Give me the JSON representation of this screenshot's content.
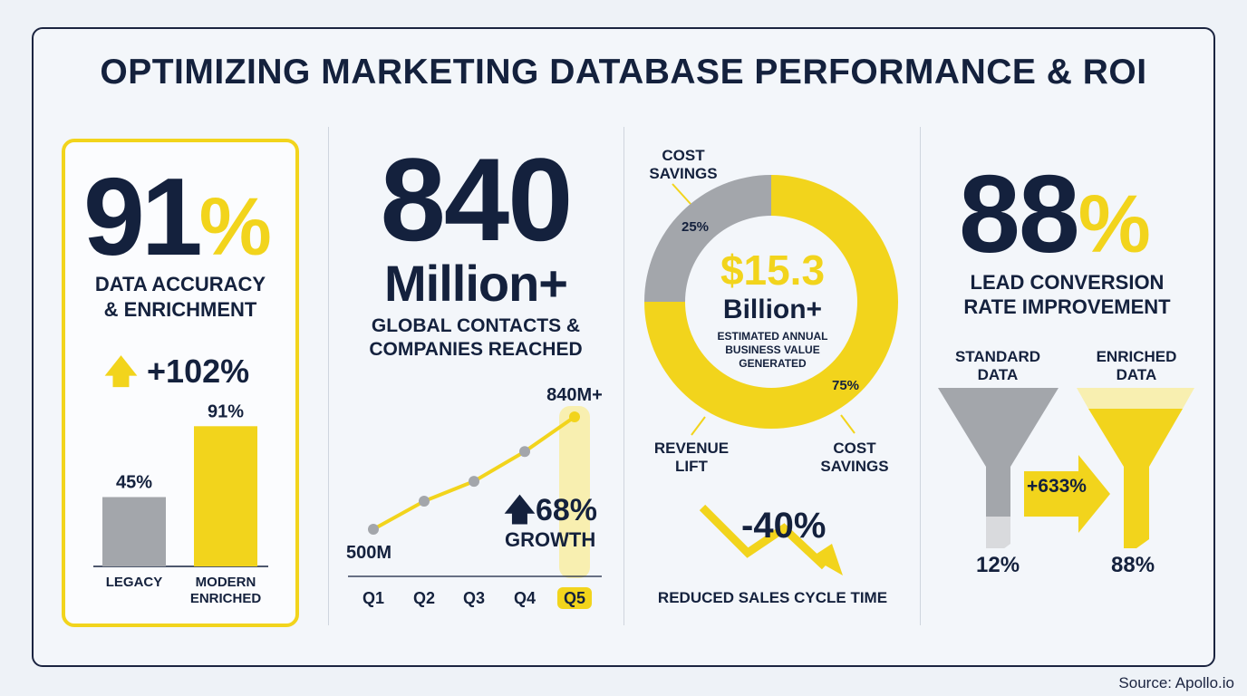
{
  "title": "OPTIMIZING MARKETING DATABASE PERFORMANCE & ROI",
  "source": "Source: Apollo.io",
  "colors": {
    "accent": "#f2d41c",
    "navy": "#14213d",
    "gray": "#a3a6ab"
  },
  "panel1": {
    "big": "91",
    "pct": "%",
    "label1": "DATA ACCURACY",
    "label2": "& ENRICHMENT",
    "change": "+102%",
    "icon": "arrow-up-icon"
  },
  "panel2": {
    "big": "840",
    "unit": "Million+",
    "label1": "GLOBAL CONTACTS &",
    "label2": "COMPANIES REACHED",
    "growth": "68%",
    "growth_label": "GROWTH",
    "icon": "arrow-up-icon"
  },
  "panel3": {
    "big": "$15.3",
    "unit": "Billion+",
    "sub1": "ESTIMATED ANNUAL",
    "sub2": "BUSINESS VALUE",
    "sub3": "GENERATED",
    "top_label1": "COST",
    "top_label2": "SAVINGS",
    "bl1": "REVENUE",
    "bl2": "LIFT",
    "br1": "COST",
    "br2": "SAVINGS",
    "reduction": "-40%",
    "reduction_label": "REDUCED SALES CYCLE TIME",
    "icon": "trend-down-arrow-icon"
  },
  "panel4": {
    "big": "88",
    "pct": "%",
    "label1": "LEAD CONVERSION",
    "label2": "RATE IMPROVEMENT",
    "std1": "STANDARD",
    "std2": "DATA",
    "enr1": "ENRICHED",
    "enr2": "DATA",
    "increase": "+633%",
    "std_val": "12%",
    "enr_val": "88%"
  },
  "chart_data": [
    {
      "type": "bar",
      "categories": [
        "LEGACY",
        "MODERN ENRICHED"
      ],
      "values": [
        45,
        91
      ],
      "labels": [
        "45%",
        "91%"
      ],
      "ylim": [
        0,
        100
      ]
    },
    {
      "type": "line",
      "categories": [
        "Q1",
        "Q2",
        "Q3",
        "Q4",
        "Q5"
      ],
      "values": [
        500,
        585,
        645,
        735,
        840
      ],
      "point_labels": {
        "first": "500M",
        "last": "840M+"
      },
      "highlight": "Q5"
    },
    {
      "type": "pie",
      "donut": true,
      "slices": [
        {
          "label": "COST SAVINGS",
          "value": 25,
          "text": "25%",
          "color": "#a3a6ab"
        },
        {
          "label": "REVENUE LIFT / COST SAVINGS",
          "value": 75,
          "text": "75%",
          "color": "#f2d41c"
        }
      ]
    },
    {
      "type": "funnel",
      "categories": [
        "STANDARD DATA",
        "ENRICHED DATA"
      ],
      "values": [
        12,
        88
      ]
    }
  ]
}
